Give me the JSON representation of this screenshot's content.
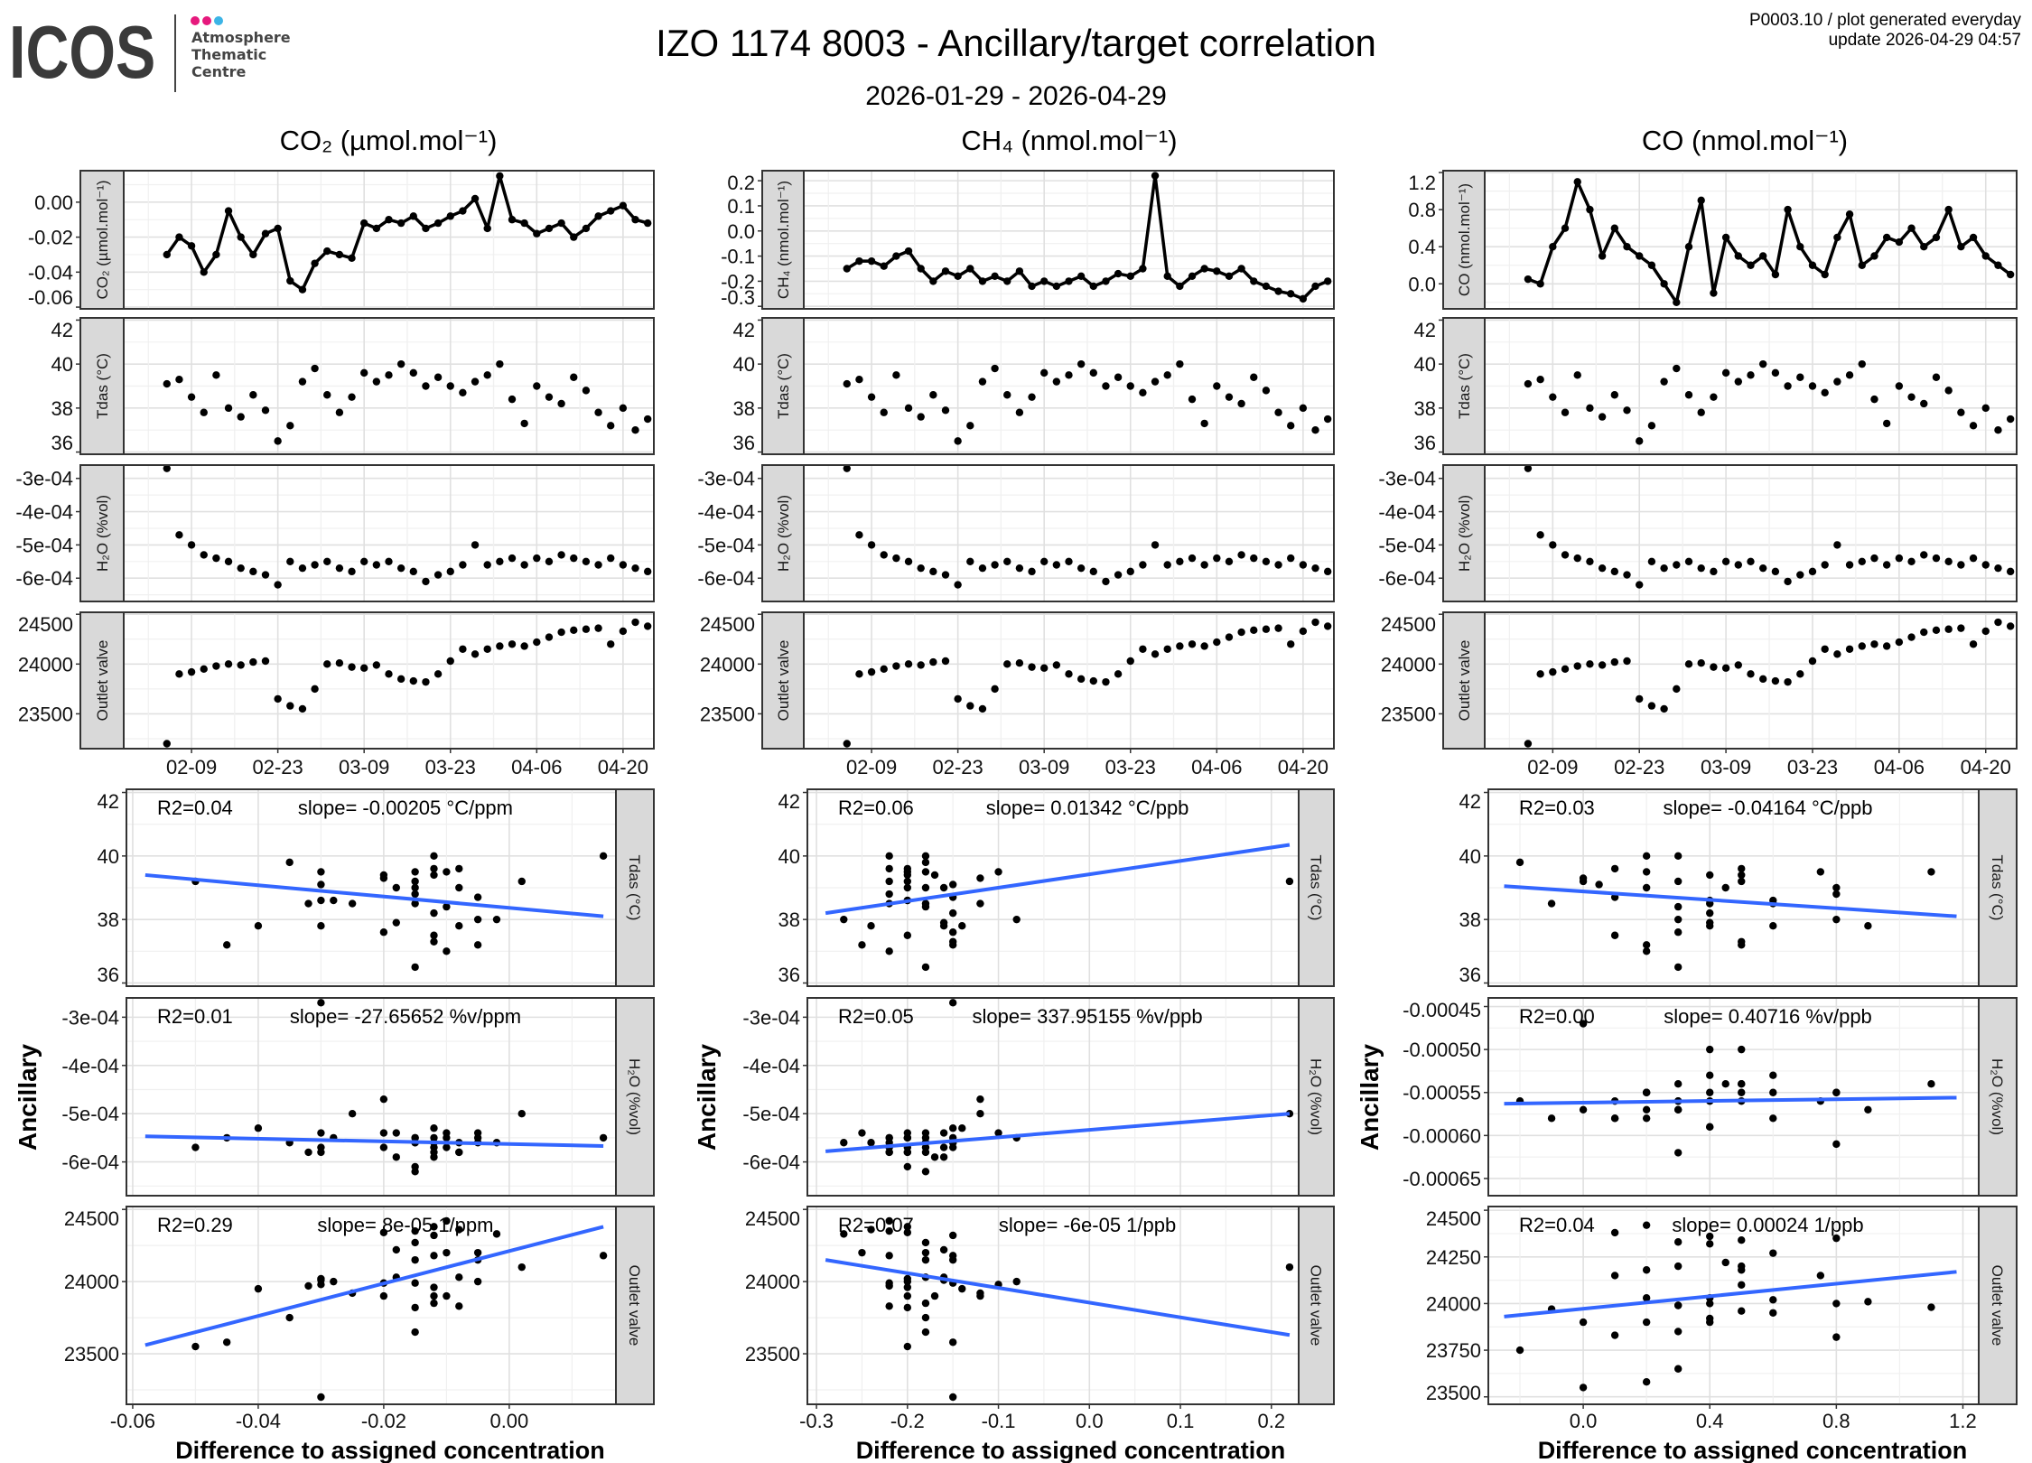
{
  "header": {
    "logo": {
      "wordmark": "ICOS",
      "lines": [
        "Atmosphere",
        "Thematic",
        "Centre"
      ],
      "dot_colors": [
        "#e6197d",
        "#e6197d",
        "#3cb4e6"
      ]
    },
    "title": "IZO 1174 8003 - Ancillary/target correlation",
    "subtitle": "2026-01-29 - 2026-04-29",
    "meta_line1": "P0003.10 / plot generated everyday",
    "meta_line2": "update  2026-04-29 04:57"
  },
  "columns": [
    {
      "header": "CO₂ (µmol.mol⁻¹)",
      "strip": "CO₂ (µmol.mol⁻¹)",
      "target": "co2"
    },
    {
      "header": "CH₄ (nmol.mol⁻¹)",
      "strip": "CH₄ (nmol.mol⁻¹)",
      "target": "ch4"
    },
    {
      "header": "CO (nmol.mol⁻¹)",
      "strip": "CO (nmol.mol⁻¹)",
      "target": "co"
    }
  ],
  "chart_data": {
    "type": "scatter",
    "ylabel": "Ancillary",
    "xlabel": "Difference to assigned concentration",
    "grid": true,
    "colors": {
      "points": "#000000",
      "fit_line": "#3366ff",
      "strip_bg": "#d9d9d9"
    },
    "time_axis": {
      "range": [
        "2026-01-29",
        "2026-04-25"
      ],
      "ticks": [
        "2026-02-09",
        "2026-02-23",
        "2026-03-09",
        "2026-03-23",
        "2026-04-06",
        "2026-04-20"
      ],
      "tick_labels": [
        "02-09",
        "02-23",
        "03-09",
        "03-23",
        "04-06",
        "04-20"
      ]
    },
    "ancillary": [
      {
        "key": "tdas",
        "strip": "Tdas (°C)"
      },
      {
        "key": "h2o",
        "strip": "H₂O (%vol)"
      },
      {
        "key": "outlet",
        "strip": "Outlet valve"
      }
    ],
    "axes": {
      "co2": {
        "lim": [
          -0.061,
          0.018
        ],
        "ticks": [
          -0.06,
          -0.04,
          -0.02,
          0.0
        ],
        "labels": [
          "-0.06",
          "-0.04",
          "-0.02",
          "0.00"
        ]
      },
      "ch4": {
        "lim": [
          -0.31,
          0.24
        ],
        "ticks": [
          -0.3,
          -0.2,
          -0.1,
          0.0,
          0.1,
          0.2
        ],
        "labels": [
          "-0.3",
          "-0.2",
          "-0.1",
          "0.0",
          "0.1",
          "0.2"
        ]
      },
      "co": {
        "lim": [
          -0.27,
          1.22
        ],
        "ticks": [
          0.0,
          0.4,
          0.8,
          1.2
        ],
        "labels": [
          "0.0",
          "0.4",
          "0.8",
          "1.2"
        ]
      },
      "tdas": {
        "lim": [
          35.9,
          42.1
        ],
        "ticks": [
          36,
          38,
          40,
          42
        ],
        "labels": [
          "36",
          "38",
          "40",
          "42"
        ]
      },
      "h2o": {
        "lim": [
          -0.00067,
          -0.00026
        ],
        "ticks": [
          -0.0006,
          -0.0005,
          -0.0004,
          -0.0003
        ],
        "labels": [
          "-6e-04",
          "-5e-04",
          "-4e-04",
          "-3e-04"
        ]
      },
      "outlet": {
        "lim": [
          23150,
          24520
        ],
        "ticks": [
          23500,
          24000,
          24500
        ],
        "labels": [
          "23500",
          "24000",
          "24500"
        ]
      }
    },
    "scatter_x_axes": {
      "co2": {
        "lim": [
          -0.061,
          0.017
        ],
        "ticks": [
          -0.06,
          -0.04,
          -0.02,
          0.0
        ],
        "labels": [
          "-0.06",
          "-0.04",
          "-0.02",
          "0.00"
        ]
      },
      "ch4": {
        "lim": [
          -0.31,
          0.23
        ],
        "ticks": [
          -0.3,
          -0.2,
          -0.1,
          0.0,
          0.1,
          0.2
        ],
        "labels": [
          "-0.3",
          "-0.2",
          "-0.1",
          "0.0",
          "0.1",
          "0.2"
        ]
      },
      "co": {
        "lim": [
          -0.3,
          1.25
        ],
        "ticks": [
          0.0,
          0.4,
          0.8,
          1.2
        ],
        "labels": [
          "0.0",
          "0.4",
          "0.8",
          "1.2"
        ]
      }
    },
    "scatter_y_override": {
      "co.h2o": {
        "lim": [
          -0.00067,
          -0.00044
        ],
        "ticks": [
          -0.00065,
          -0.0006,
          -0.00055,
          -0.0005,
          -0.00045
        ],
        "labels": [
          "-0.00065",
          "-0.00060",
          "-0.00055",
          "-0.00050",
          "-0.00045"
        ]
      },
      "co.outlet": {
        "lim": [
          23460,
          24520
        ],
        "ticks": [
          23500,
          23750,
          24000,
          24250,
          24500
        ],
        "labels": [
          "23500",
          "23750",
          "24000",
          "24250",
          "24500"
        ]
      }
    },
    "observations": {
      "dates": [
        "2026-02-05",
        "2026-02-07",
        "2026-02-09",
        "2026-02-11",
        "2026-02-13",
        "2026-02-15",
        "2026-02-17",
        "2026-02-19",
        "2026-02-21",
        "2026-02-23",
        "2026-02-25",
        "2026-02-27",
        "2026-03-01",
        "2026-03-03",
        "2026-03-05",
        "2026-03-07",
        "2026-03-09",
        "2026-03-11",
        "2026-03-13",
        "2026-03-15",
        "2026-03-17",
        "2026-03-19",
        "2026-03-21",
        "2026-03-23",
        "2026-03-25",
        "2026-03-27",
        "2026-03-29",
        "2026-03-31",
        "2026-04-02",
        "2026-04-04",
        "2026-04-06",
        "2026-04-08",
        "2026-04-10",
        "2026-04-12",
        "2026-04-14",
        "2026-04-16",
        "2026-04-18",
        "2026-04-20",
        "2026-04-22",
        "2026-04-24"
      ],
      "co2": [
        -0.03,
        -0.02,
        -0.025,
        -0.04,
        -0.03,
        -0.005,
        -0.02,
        -0.03,
        -0.018,
        -0.015,
        -0.045,
        -0.05,
        -0.035,
        -0.028,
        -0.03,
        -0.032,
        -0.012,
        -0.015,
        -0.01,
        -0.012,
        -0.008,
        -0.015,
        -0.012,
        -0.008,
        -0.005,
        0.002,
        -0.015,
        0.015,
        -0.01,
        -0.012,
        -0.018,
        -0.015,
        -0.012,
        -0.02,
        -0.015,
        -0.008,
        -0.005,
        -0.002,
        -0.01,
        -0.012
      ],
      "ch4": [
        -0.15,
        -0.12,
        -0.12,
        -0.14,
        -0.1,
        -0.08,
        -0.15,
        -0.2,
        -0.16,
        -0.18,
        -0.15,
        -0.2,
        -0.18,
        -0.2,
        -0.16,
        -0.22,
        -0.2,
        -0.22,
        -0.2,
        -0.18,
        -0.22,
        -0.2,
        -0.17,
        -0.18,
        -0.15,
        0.22,
        -0.18,
        -0.22,
        -0.18,
        -0.15,
        -0.16,
        -0.18,
        -0.15,
        -0.2,
        -0.22,
        -0.24,
        -0.25,
        -0.27,
        -0.22,
        -0.2
      ],
      "co": [
        0.05,
        0.0,
        0.4,
        0.6,
        1.1,
        0.8,
        0.3,
        0.6,
        0.4,
        0.3,
        0.2,
        0.0,
        -0.2,
        0.4,
        0.9,
        -0.1,
        0.5,
        0.3,
        0.2,
        0.3,
        0.1,
        0.8,
        0.4,
        0.2,
        0.1,
        0.5,
        0.75,
        0.2,
        0.3,
        0.5,
        0.45,
        0.6,
        0.4,
        0.5,
        0.8,
        0.4,
        0.5,
        0.3,
        0.2,
        0.1
      ],
      "tdas": [
        39.1,
        39.3,
        38.5,
        37.8,
        39.5,
        38.0,
        37.6,
        38.6,
        37.9,
        36.5,
        37.2,
        39.2,
        39.8,
        38.6,
        37.8,
        38.5,
        39.6,
        39.2,
        39.5,
        40.0,
        39.6,
        39.0,
        39.4,
        39.0,
        38.7,
        39.2,
        39.5,
        40.0,
        38.4,
        37.3,
        39.0,
        38.5,
        38.2,
        39.4,
        38.8,
        37.8,
        37.2,
        38.0,
        37.0,
        37.5
      ],
      "h2o": [
        -0.00027,
        -0.00047,
        -0.0005,
        -0.00053,
        -0.00054,
        -0.00055,
        -0.00057,
        -0.00058,
        -0.00059,
        -0.00062,
        -0.00055,
        -0.00057,
        -0.00056,
        -0.00055,
        -0.00057,
        -0.00058,
        -0.00055,
        -0.00056,
        -0.00055,
        -0.00057,
        -0.00058,
        -0.00061,
        -0.00059,
        -0.00058,
        -0.00056,
        -0.0005,
        -0.00056,
        -0.00055,
        -0.00054,
        -0.00056,
        -0.00054,
        -0.00055,
        -0.00053,
        -0.00054,
        -0.00055,
        -0.00056,
        -0.00054,
        -0.00056,
        -0.00057,
        -0.00058
      ],
      "outlet": [
        23200,
        23900,
        23920,
        23950,
        23980,
        24000,
        23990,
        24020,
        24030,
        23650,
        23580,
        23550,
        23750,
        24000,
        24010,
        23970,
        23960,
        23990,
        23900,
        23850,
        23830,
        23820,
        23900,
        24030,
        24150,
        24100,
        24150,
        24180,
        24200,
        24180,
        24220,
        24270,
        24320,
        24340,
        24350,
        24360,
        24200,
        24330,
        24420,
        24380
      ]
    },
    "fits": {
      "co2.tdas": {
        "r2": "R2=0.04",
        "slope": "slope= -0.00205 °C/ppm",
        "x": [
          -0.058,
          0.015
        ],
        "y": [
          39.4,
          38.1
        ]
      },
      "co2.h2o": {
        "r2": "R2=0.01",
        "slope": "slope= -27.65652 %v/ppm",
        "x": [
          -0.058,
          0.015
        ],
        "y": [
          -0.000547,
          -0.000567
        ]
      },
      "co2.outlet": {
        "r2": "R2=0.29",
        "slope": "slope= 8e-05 1/ppm",
        "x": [
          -0.058,
          0.015
        ],
        "y": [
          23560,
          24380
        ]
      },
      "ch4.tdas": {
        "r2": "R2=0.06",
        "slope": "slope= 0.01342 °C/ppb",
        "x": [
          -0.29,
          0.22
        ],
        "y": [
          38.2,
          40.35
        ]
      },
      "ch4.h2o": {
        "r2": "R2=0.05",
        "slope": "slope= 337.95155 %v/ppb",
        "x": [
          -0.29,
          0.22
        ],
        "y": [
          -0.000578,
          -0.0005
        ]
      },
      "ch4.outlet": {
        "r2": "R2=0.07",
        "slope": "slope= -6e-05 1/ppb",
        "x": [
          -0.29,
          0.22
        ],
        "y": [
          24150,
          23630
        ]
      },
      "co.tdas": {
        "r2": "R2=0.03",
        "slope": "slope= -0.04164 °C/ppb",
        "x": [
          -0.25,
          1.18
        ],
        "y": [
          39.05,
          38.1
        ]
      },
      "co.h2o": {
        "r2": "R2=0.00",
        "slope": "slope= 0.40716 %v/ppb",
        "x": [
          -0.25,
          1.18
        ],
        "y": [
          -0.000563,
          -0.000556
        ]
      },
      "co.outlet": {
        "r2": "R2=0.04",
        "slope": "slope= 0.00024 1/ppb",
        "x": [
          -0.25,
          1.18
        ],
        "y": [
          23930,
          24170
        ]
      }
    }
  }
}
